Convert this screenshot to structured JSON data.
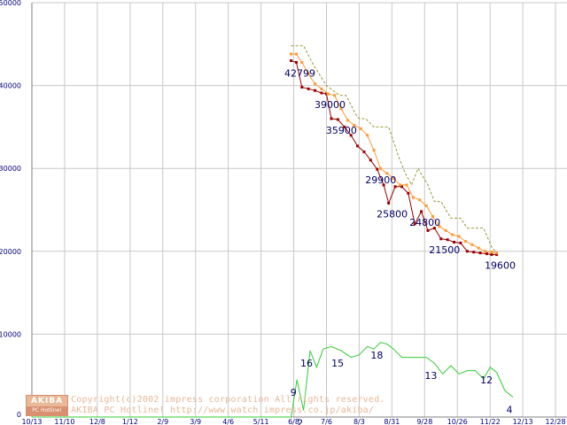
{
  "chart_data": {
    "type": "line",
    "x": [
      "10/13",
      "11/10",
      "12/8",
      "1/12",
      "2/9",
      "3/9",
      "4/6",
      "5/11",
      "6/8",
      "7/6",
      "8/3",
      "8/31",
      "9/28",
      "10/26",
      "11/22",
      "12/13",
      "12/28"
    ],
    "ylim": [
      0,
      50000
    ],
    "yticks": [
      "0",
      "10000",
      "20000",
      "30000",
      "40000",
      "50000"
    ],
    "grid": true,
    "series": [
      {
        "color": "#990000",
        "points": [
          [
            7.92,
            43000
          ],
          [
            8.08,
            42799
          ],
          [
            8.25,
            39800
          ],
          [
            8.45,
            39600
          ],
          [
            8.65,
            39400
          ],
          [
            8.85,
            39100
          ],
          [
            9.0,
            39000
          ],
          [
            9.15,
            36000
          ],
          [
            9.35,
            35900
          ],
          [
            9.55,
            35000
          ],
          [
            9.75,
            34000
          ],
          [
            9.95,
            32700
          ],
          [
            10.15,
            32000
          ],
          [
            10.35,
            31000
          ],
          [
            10.55,
            29900
          ],
          [
            10.75,
            28000
          ],
          [
            10.9,
            25800
          ],
          [
            11.1,
            27800
          ],
          [
            11.3,
            27800
          ],
          [
            11.5,
            27000
          ],
          [
            11.7,
            23300
          ],
          [
            11.9,
            24800
          ],
          [
            12.1,
            22500
          ],
          [
            12.3,
            22800
          ],
          [
            12.5,
            21500
          ],
          [
            12.7,
            21400
          ],
          [
            12.9,
            21100
          ],
          [
            13.1,
            21000
          ],
          [
            13.3,
            20000
          ],
          [
            13.5,
            19900
          ],
          [
            13.7,
            19800
          ],
          [
            13.9,
            19700
          ],
          [
            14.05,
            19600
          ],
          [
            14.2,
            19600
          ]
        ]
      },
      {
        "color": "#ff9933",
        "points": [
          [
            7.92,
            43800
          ],
          [
            8.08,
            43800
          ],
          [
            8.25,
            42800
          ],
          [
            8.45,
            41400
          ],
          [
            8.65,
            40200
          ],
          [
            8.85,
            39600
          ],
          [
            9.05,
            39000
          ],
          [
            9.25,
            38800
          ],
          [
            9.45,
            37200
          ],
          [
            9.65,
            35800
          ],
          [
            9.85,
            35200
          ],
          [
            10.05,
            34800
          ],
          [
            10.25,
            34000
          ],
          [
            10.45,
            32200
          ],
          [
            10.65,
            30000
          ],
          [
            10.85,
            29400
          ],
          [
            11.05,
            28800
          ],
          [
            11.25,
            28000
          ],
          [
            11.45,
            28000
          ],
          [
            11.65,
            26500
          ],
          [
            11.85,
            26200
          ],
          [
            12.05,
            25500
          ],
          [
            12.25,
            24200
          ],
          [
            12.45,
            23000
          ],
          [
            12.65,
            22500
          ],
          [
            12.85,
            22000
          ],
          [
            13.05,
            21800
          ],
          [
            13.25,
            21200
          ],
          [
            13.45,
            20800
          ],
          [
            13.65,
            20400
          ],
          [
            13.85,
            20000
          ],
          [
            14.05,
            19900
          ],
          [
            14.2,
            19800
          ]
        ]
      },
      {
        "color": "#999933",
        "dashed": true,
        "points": [
          [
            7.92,
            44800
          ],
          [
            8.3,
            44800
          ],
          [
            8.6,
            42500
          ],
          [
            9.0,
            40000
          ],
          [
            9.4,
            38800
          ],
          [
            9.6,
            38800
          ],
          [
            9.9,
            36500
          ],
          [
            10.0,
            36000
          ],
          [
            10.2,
            36000
          ],
          [
            10.45,
            35000
          ],
          [
            10.9,
            35000
          ],
          [
            11.2,
            31500
          ],
          [
            11.4,
            29500
          ],
          [
            11.6,
            28000
          ],
          [
            11.8,
            30000
          ],
          [
            12.1,
            28000
          ],
          [
            12.3,
            26000
          ],
          [
            12.5,
            26000
          ],
          [
            12.8,
            24000
          ],
          [
            13.1,
            24000
          ],
          [
            13.3,
            22800
          ],
          [
            13.6,
            22800
          ],
          [
            13.8,
            22800
          ],
          [
            14.05,
            20500
          ],
          [
            14.2,
            19800
          ]
        ]
      },
      {
        "color": "#33cc33",
        "points": [
          [
            0,
            0
          ],
          [
            7.92,
            0
          ],
          [
            8.1,
            4500
          ],
          [
            8.3,
            800
          ],
          [
            8.5,
            8000
          ],
          [
            8.7,
            6000
          ],
          [
            8.9,
            8200
          ],
          [
            9.15,
            8500
          ],
          [
            9.45,
            8000
          ],
          [
            9.75,
            7200
          ],
          [
            10.0,
            7500
          ],
          [
            10.25,
            8500
          ],
          [
            10.45,
            8200
          ],
          [
            10.65,
            9000
          ],
          [
            10.85,
            8800
          ],
          [
            11.05,
            8200
          ],
          [
            11.3,
            7200
          ],
          [
            11.55,
            7200
          ],
          [
            11.8,
            7200
          ],
          [
            12.05,
            7200
          ],
          [
            12.3,
            6500
          ],
          [
            12.55,
            5200
          ],
          [
            12.8,
            6200
          ],
          [
            13.05,
            5200
          ],
          [
            13.3,
            5600
          ],
          [
            13.55,
            5600
          ],
          [
            13.8,
            4600
          ],
          [
            14.0,
            6000
          ],
          [
            14.2,
            5400
          ],
          [
            14.45,
            3200
          ],
          [
            14.7,
            2400
          ]
        ]
      }
    ],
    "price_labels": [
      {
        "text": "42799",
        "x": 8.08,
        "y": 42799
      },
      {
        "text": "39000",
        "x": 9.0,
        "y": 39000
      },
      {
        "text": "35900",
        "x": 9.35,
        "y": 35900
      },
      {
        "text": "29900",
        "x": 10.55,
        "y": 29900
      },
      {
        "text": "25800",
        "x": 10.9,
        "y": 25800
      },
      {
        "text": "24800",
        "x": 11.9,
        "y": 24800
      },
      {
        "text": "21500",
        "x": 12.5,
        "y": 21500
      },
      {
        "text": "19600",
        "x": 14.2,
        "y": 19600
      }
    ],
    "count_labels": [
      {
        "text": "9",
        "x": 8.1,
        "y": 4500
      },
      {
        "text": "2",
        "x": 8.3,
        "y": 800
      },
      {
        "text": "16",
        "x": 8.5,
        "y": 8000
      },
      {
        "text": "15",
        "x": 9.45,
        "y": 8000
      },
      {
        "text": "18",
        "x": 10.65,
        "y": 9000
      },
      {
        "text": "13",
        "x": 12.3,
        "y": 6500
      },
      {
        "text": "12",
        "x": 14.0,
        "y": 6000
      },
      {
        "text": "4",
        "x": 14.7,
        "y": 2400
      }
    ]
  },
  "watermark": {
    "logo_top": "AKIBA",
    "logo_bottom": "PC Hotline!",
    "copyright": "Copyright(c)2002 impress corporation All rights reserved.",
    "site": "AKIBA PC Hotline!  http://www.watch.impress.co.jp/akiba/"
  }
}
